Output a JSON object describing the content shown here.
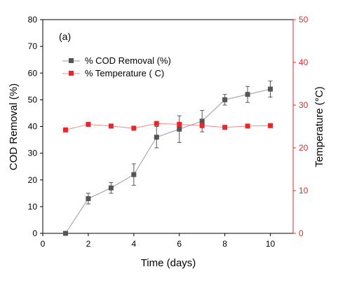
{
  "chart_data": {
    "type": "line",
    "panel_label": "(a)",
    "xlabel": "Time (days)",
    "ylabel_left": "COD Removal (%)",
    "ylabel_right": "Temperature (°C)",
    "xlim": [
      0,
      11
    ],
    "x_ticks": [
      0,
      2,
      4,
      6,
      8,
      10
    ],
    "ylim_left": [
      0,
      80
    ],
    "y_ticks_left": [
      0,
      10,
      20,
      30,
      40,
      50,
      60,
      70,
      80
    ],
    "ylim_right": [
      0,
      50
    ],
    "y_ticks_right": [
      0,
      10,
      20,
      30,
      40,
      50
    ],
    "grid": false,
    "legend_position": "top-left",
    "series": [
      {
        "name": "% COD Removal (%)",
        "axis": "left",
        "color": "#555555",
        "line_color": "#9a9a9a",
        "marker": "square",
        "x": [
          1,
          2,
          3,
          4,
          5,
          6,
          7,
          8,
          9,
          10
        ],
        "values": [
          0,
          13,
          17,
          22,
          36,
          39,
          42,
          50,
          52,
          54
        ],
        "error": [
          0,
          2,
          2,
          4,
          4,
          5,
          4,
          2,
          3,
          3
        ]
      },
      {
        "name": "% Temperature ( C)",
        "axis": "right",
        "color": "#e8272a",
        "line_color": "#f08a8a",
        "marker": "square",
        "x": [
          1,
          2,
          3,
          4,
          5,
          6,
          7,
          8,
          9,
          10
        ],
        "values": [
          24.2,
          25.5,
          25.1,
          24.6,
          25.7,
          25.5,
          25.2,
          24.8,
          25.1,
          25.2
        ]
      }
    ]
  }
}
